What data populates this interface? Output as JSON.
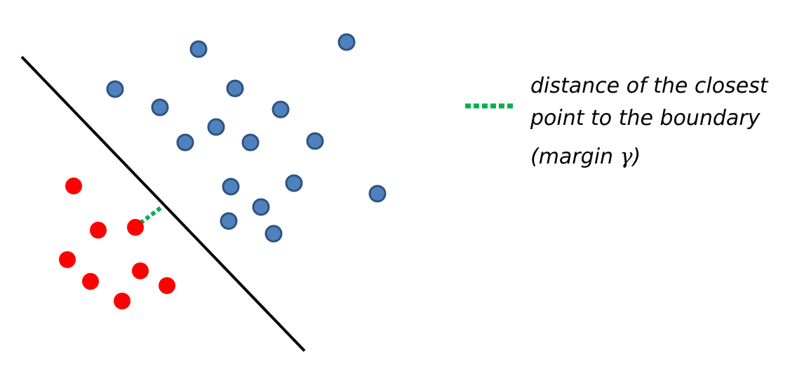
{
  "colors": {
    "blue_point_fill": "#4f81bd",
    "blue_point_stroke": "#2f5380",
    "red_point_fill": "#ff0000",
    "boundary": "#000000",
    "margin_line": "#00b050"
  },
  "legend": {
    "line1": "distance of the closest",
    "line2": "point to the boundary",
    "line3_prefix": "(margin ",
    "line3_symbol": "γ",
    "line3_suffix": ")"
  },
  "class_a_points": [
    [
      283,
      70
    ],
    [
      494,
      60
    ],
    [
      164,
      127
    ],
    [
      335,
      126
    ],
    [
      228,
      153
    ],
    [
      400,
      156
    ],
    [
      308,
      181
    ],
    [
      264,
      203
    ],
    [
      357,
      203
    ],
    [
      449,
      201
    ],
    [
      329,
      266
    ],
    [
      419,
      261
    ],
    [
      538,
      276
    ],
    [
      372,
      295
    ],
    [
      326,
      315
    ],
    [
      390,
      333
    ]
  ],
  "class_b_points": [
    [
      105,
      265
    ],
    [
      140,
      328
    ],
    [
      193,
      324
    ],
    [
      96,
      370
    ],
    [
      200,
      386
    ],
    [
      129,
      401
    ],
    [
      238,
      407
    ],
    [
      174,
      429
    ]
  ],
  "boundary": {
    "from": [
      31,
      81
    ],
    "to": [
      434,
      500
    ]
  },
  "margin_segment": {
    "from": [
      200,
      318
    ],
    "to": [
      232,
      294
    ]
  }
}
